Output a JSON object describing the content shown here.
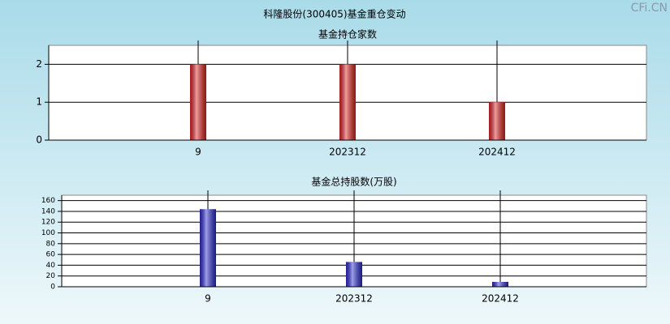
{
  "title": "科隆股份(300405)基金重仓变动",
  "watermark": "CFi.CN",
  "chart_data": [
    {
      "type": "bar",
      "title": "基金持仓家数",
      "categories": [
        "9",
        "202312",
        "202412"
      ],
      "values": [
        2,
        2,
        1
      ],
      "color": "#e02424",
      "ylim": [
        0,
        2.5
      ],
      "yticks": [
        0,
        1,
        2
      ],
      "grid": true
    },
    {
      "type": "bar",
      "title": "基金总持股数(万股)",
      "categories": [
        "9",
        "202312",
        "202412"
      ],
      "values": [
        144,
        46,
        9
      ],
      "color": "#2a2ad0",
      "ylim": [
        0,
        170
      ],
      "yticks": [
        0,
        20,
        40,
        60,
        80,
        100,
        120,
        140,
        160
      ],
      "grid": true
    }
  ]
}
